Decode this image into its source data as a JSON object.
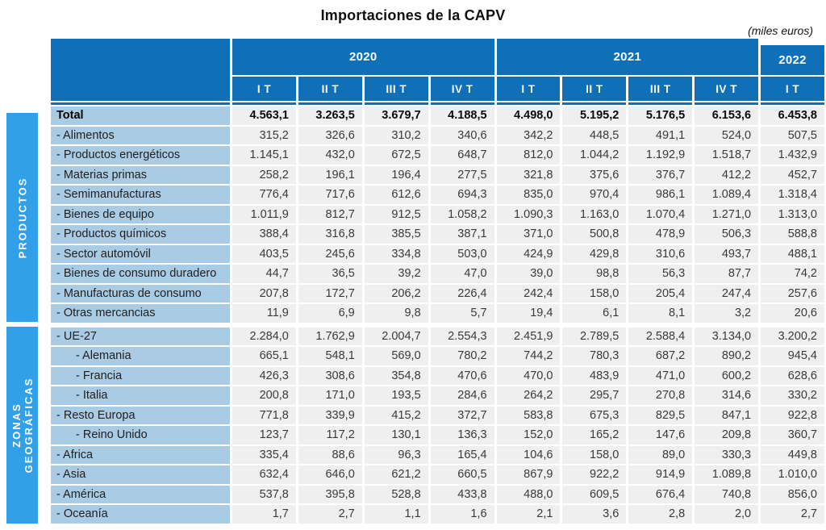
{
  "title": "Importaciones de la CAPV",
  "units_note": "(miles euros)",
  "colors": {
    "header_blue": "#0F6FB7",
    "sidebar_blue": "#31A0E8",
    "label_blue": "#A9CBE3",
    "cell_gray": "#EFEFEF"
  },
  "sidebar": {
    "productos_label": "PRODUCTOS",
    "zonas_label_line1": "ZONAS",
    "zonas_label_line2": "GEOGRÁFICAS"
  },
  "chart_data": {
    "type": "table",
    "title": "Importaciones de la CAPV",
    "units": "miles euros",
    "year_groups": [
      {
        "label": "2020",
        "span": 4,
        "lowered": false
      },
      {
        "label": "2021",
        "span": 4,
        "lowered": false
      },
      {
        "label": "2022",
        "span": 1,
        "lowered": true
      }
    ],
    "quarters": [
      "I T",
      "II T",
      "III T",
      "IV T",
      "I T",
      "II T",
      "III T",
      "IV T",
      "I T"
    ],
    "rows": [
      {
        "label": "Total",
        "section": "total",
        "bold": true,
        "indent": 0,
        "values": [
          "4.563,1",
          "3.263,5",
          "3.679,7",
          "4.188,5",
          "4.498,0",
          "5.195,2",
          "5.176,5",
          "6.153,6",
          "6.453,8"
        ]
      },
      {
        "label": "- Alimentos",
        "section": "productos",
        "indent": 0,
        "values": [
          "315,2",
          "326,6",
          "310,2",
          "340,6",
          "342,2",
          "448,5",
          "491,1",
          "524,0",
          "507,5"
        ]
      },
      {
        "label": "- Productos energéticos",
        "section": "productos",
        "indent": 0,
        "values": [
          "1.145,1",
          "432,0",
          "672,5",
          "648,7",
          "812,0",
          "1.044,2",
          "1.192,9",
          "1.518,7",
          "1.432,9"
        ]
      },
      {
        "label": "- Materias primas",
        "section": "productos",
        "indent": 0,
        "values": [
          "258,2",
          "196,1",
          "196,4",
          "277,5",
          "321,8",
          "375,6",
          "376,7",
          "412,2",
          "452,7"
        ]
      },
      {
        "label": "- Semimanufacturas",
        "section": "productos",
        "indent": 0,
        "values": [
          "776,4",
          "717,6",
          "612,6",
          "694,3",
          "835,0",
          "970,4",
          "986,1",
          "1.089,4",
          "1.318,4"
        ]
      },
      {
        "label": "- Bienes de equipo",
        "section": "productos",
        "indent": 0,
        "values": [
          "1.011,9",
          "812,7",
          "912,5",
          "1.058,2",
          "1.090,3",
          "1.163,0",
          "1.070,4",
          "1.271,0",
          "1.313,0"
        ]
      },
      {
        "label": "- Productos químicos",
        "section": "productos",
        "indent": 0,
        "values": [
          "388,4",
          "316,8",
          "385,5",
          "387,1",
          "371,0",
          "500,8",
          "478,9",
          "506,3",
          "588,8"
        ]
      },
      {
        "label": "- Sector automóvil",
        "section": "productos",
        "indent": 0,
        "values": [
          "403,5",
          "245,6",
          "334,8",
          "503,0",
          "424,9",
          "429,8",
          "310,6",
          "493,7",
          "488,1"
        ]
      },
      {
        "label": "- Bienes de consumo duradero",
        "section": "productos",
        "indent": 0,
        "values": [
          "44,7",
          "36,5",
          "39,2",
          "47,0",
          "39,0",
          "98,8",
          "56,3",
          "87,7",
          "74,2"
        ]
      },
      {
        "label": "- Manufacturas de consumo",
        "section": "productos",
        "indent": 0,
        "values": [
          "207,8",
          "172,7",
          "206,2",
          "226,4",
          "242,4",
          "158,0",
          "205,4",
          "247,4",
          "257,6"
        ]
      },
      {
        "label": "- Otras mercancias",
        "section": "productos",
        "indent": 0,
        "values": [
          "11,9",
          "6,9",
          "9,8",
          "5,7",
          "19,4",
          "6,1",
          "8,1",
          "3,2",
          "20,6"
        ]
      },
      {
        "label": "- UE-27",
        "section": "zonas",
        "indent": 0,
        "gap_before": true,
        "values": [
          "2.284,0",
          "1.762,9",
          "2.004,7",
          "2.554,3",
          "2.451,9",
          "2.789,5",
          "2.588,4",
          "3.134,0",
          "3.200,2"
        ]
      },
      {
        "label": "- Alemania",
        "section": "zonas",
        "indent": 1,
        "values": [
          "665,1",
          "548,1",
          "569,0",
          "780,2",
          "744,2",
          "780,3",
          "687,2",
          "890,2",
          "945,4"
        ]
      },
      {
        "label": "- Francia",
        "section": "zonas",
        "indent": 1,
        "values": [
          "426,3",
          "308,6",
          "354,8",
          "470,6",
          "470,0",
          "483,9",
          "471,0",
          "600,2",
          "628,6"
        ]
      },
      {
        "label": "- Italia",
        "section": "zonas",
        "indent": 1,
        "values": [
          "200,8",
          "171,0",
          "193,5",
          "284,6",
          "264,2",
          "295,7",
          "270,8",
          "314,6",
          "330,2"
        ]
      },
      {
        "label": "- Resto Europa",
        "section": "zonas",
        "indent": 0,
        "values": [
          "771,8",
          "339,9",
          "415,2",
          "372,7",
          "583,8",
          "675,3",
          "829,5",
          "847,1",
          "922,8"
        ]
      },
      {
        "label": "- Reino Unido",
        "section": "zonas",
        "indent": 1,
        "values": [
          "123,7",
          "117,2",
          "130,1",
          "136,3",
          "152,0",
          "165,2",
          "147,6",
          "209,8",
          "360,7"
        ]
      },
      {
        "label": "- Africa",
        "section": "zonas",
        "indent": 0,
        "values": [
          "335,4",
          "88,6",
          "96,3",
          "165,4",
          "104,6",
          "158,0",
          "89,0",
          "330,3",
          "449,8"
        ]
      },
      {
        "label": "- Asia",
        "section": "zonas",
        "indent": 0,
        "values": [
          "632,4",
          "646,0",
          "621,2",
          "660,5",
          "867,9",
          "922,2",
          "914,9",
          "1.089,8",
          "1.010,0"
        ]
      },
      {
        "label": "- América",
        "section": "zonas",
        "indent": 0,
        "values": [
          "537,8",
          "395,8",
          "528,8",
          "433,8",
          "488,0",
          "609,5",
          "676,4",
          "740,8",
          "856,0"
        ]
      },
      {
        "label": "- Oceanía",
        "section": "zonas",
        "indent": 0,
        "values": [
          "1,7",
          "2,7",
          "1,1",
          "1,6",
          "2,1",
          "3,6",
          "2,8",
          "2,0",
          "2,7"
        ]
      }
    ]
  }
}
